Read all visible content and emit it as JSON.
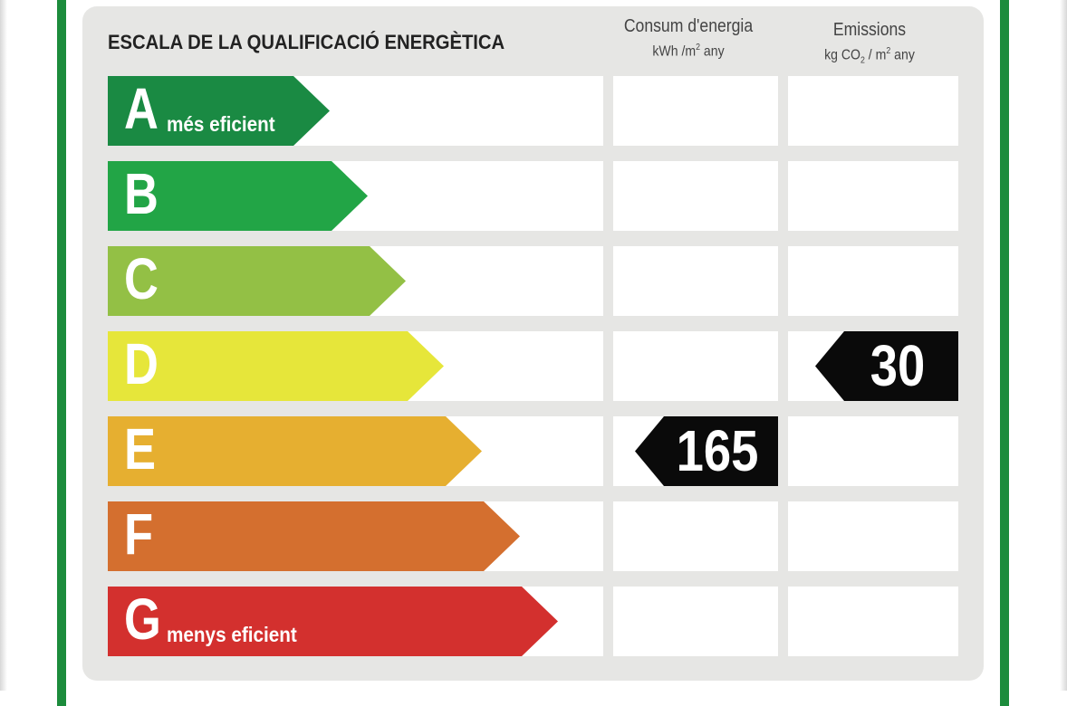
{
  "header": {
    "title": "ESCALA DE LA QUALIFICACIÓ ENERGÈTICA",
    "energy_column": {
      "label": "Consum d'energia",
      "unit_prefix": "kWh /m",
      "unit_sup": "2",
      "unit_suffix": " any"
    },
    "emissions_column": {
      "label": "Emissions",
      "unit_prefix": "kg CO",
      "unit_sub": "2",
      "unit_mid": " / m",
      "unit_sup": "2",
      "unit_suffix": " any"
    }
  },
  "bands": [
    {
      "letter": "A",
      "note": "més eficient",
      "color": "#1a8a43"
    },
    {
      "letter": "B",
      "note": "",
      "color": "#22a546"
    },
    {
      "letter": "C",
      "note": "",
      "color": "#93c045"
    },
    {
      "letter": "D",
      "note": "",
      "color": "#e6e63a"
    },
    {
      "letter": "E",
      "note": "",
      "color": "#e6af30"
    },
    {
      "letter": "F",
      "note": "",
      "color": "#d46f2f"
    },
    {
      "letter": "G",
      "note": "menys eficient",
      "color": "#d3302e"
    }
  ],
  "ratings": {
    "energy": {
      "value": "165",
      "band": "E"
    },
    "emissions": {
      "value": "30",
      "band": "D"
    }
  }
}
